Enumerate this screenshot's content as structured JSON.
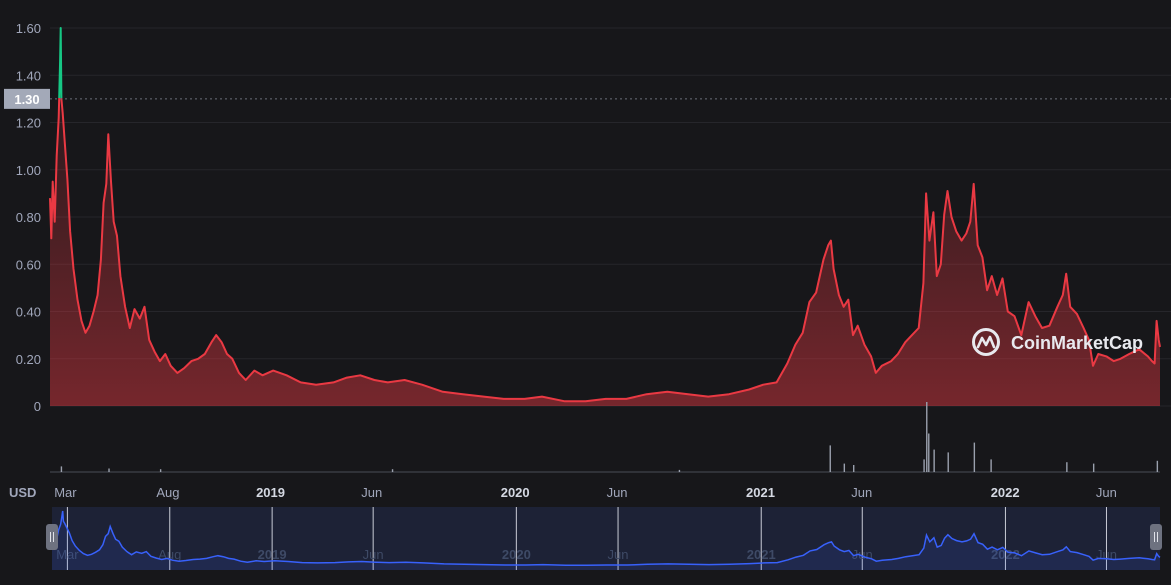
{
  "brand": {
    "name": "CoinMarketCap",
    "icon": "coinmarketcap-logo-icon"
  },
  "price_marker": {
    "label": "1.30",
    "value": 1.3,
    "color": "#a3a9b8"
  },
  "currency_label": "USD",
  "colors": {
    "background": "#17171a",
    "price_down": "#ea3943",
    "price_up": "#16c784",
    "navigator_line": "#3861fb",
    "navigator_bg": "#1d2236",
    "volume": "#9aa0ad",
    "grid": "#26262b"
  },
  "chart_data": {
    "type": "area",
    "y_axis": {
      "ticks": [
        "0",
        "0.20",
        "0.40",
        "0.60",
        "0.80",
        "1.00",
        "1.20",
        "1.40",
        "1.60"
      ],
      "range": [
        0,
        1.6
      ]
    },
    "x_axis": {
      "range": [
        "2018-02-06",
        "2022-08-20"
      ],
      "ticks": [
        {
          "date": "2018-03-01",
          "label": "Mar",
          "bold": false
        },
        {
          "date": "2018-08-01",
          "label": "Aug",
          "bold": false
        },
        {
          "date": "2019-01-01",
          "label": "2019",
          "bold": true
        },
        {
          "date": "2019-06-01",
          "label": "Jun",
          "bold": false
        },
        {
          "date": "2020-01-01",
          "label": "2020",
          "bold": true
        },
        {
          "date": "2020-06-01",
          "label": "Jun",
          "bold": false
        },
        {
          "date": "2021-01-01",
          "label": "2021",
          "bold": true
        },
        {
          "date": "2021-06-01",
          "label": "Jun",
          "bold": false
        },
        {
          "date": "2022-01-01",
          "label": "2022",
          "bold": true
        },
        {
          "date": "2022-06-01",
          "label": "Jun",
          "bold": false
        }
      ]
    },
    "series": [
      {
        "values": [
          [
            "2018-02-06",
            0.88
          ],
          [
            "2018-02-08",
            0.71
          ],
          [
            "2018-02-10",
            0.95
          ],
          [
            "2018-02-13",
            0.78
          ],
          [
            "2018-02-16",
            1.06
          ],
          [
            "2018-02-19",
            1.22
          ],
          [
            "2018-02-21",
            1.46
          ],
          [
            "2018-02-22",
            1.6
          ],
          [
            "2018-02-23",
            1.3
          ],
          [
            "2018-02-25",
            1.24
          ],
          [
            "2018-02-28",
            1.12
          ],
          [
            "2018-03-04",
            0.96
          ],
          [
            "2018-03-08",
            0.74
          ],
          [
            "2018-03-13",
            0.58
          ],
          [
            "2018-03-19",
            0.45
          ],
          [
            "2018-03-25",
            0.36
          ],
          [
            "2018-03-31",
            0.31
          ],
          [
            "2018-04-06",
            0.34
          ],
          [
            "2018-04-12",
            0.4
          ],
          [
            "2018-04-18",
            0.47
          ],
          [
            "2018-04-23",
            0.62
          ],
          [
            "2018-04-27",
            0.86
          ],
          [
            "2018-05-01",
            0.94
          ],
          [
            "2018-05-04",
            1.15
          ],
          [
            "2018-05-08",
            0.95
          ],
          [
            "2018-05-12",
            0.78
          ],
          [
            "2018-05-17",
            0.72
          ],
          [
            "2018-05-22",
            0.55
          ],
          [
            "2018-05-29",
            0.42
          ],
          [
            "2018-06-05",
            0.33
          ],
          [
            "2018-06-12",
            0.41
          ],
          [
            "2018-06-20",
            0.37
          ],
          [
            "2018-06-27",
            0.42
          ],
          [
            "2018-07-04",
            0.28
          ],
          [
            "2018-07-12",
            0.23
          ],
          [
            "2018-07-20",
            0.19
          ],
          [
            "2018-07-28",
            0.22
          ],
          [
            "2018-08-05",
            0.17
          ],
          [
            "2018-08-15",
            0.14
          ],
          [
            "2018-08-25",
            0.16
          ],
          [
            "2018-09-05",
            0.19
          ],
          [
            "2018-09-15",
            0.2
          ],
          [
            "2018-09-25",
            0.22
          ],
          [
            "2018-10-05",
            0.27
          ],
          [
            "2018-10-12",
            0.3
          ],
          [
            "2018-10-20",
            0.27
          ],
          [
            "2018-10-28",
            0.22
          ],
          [
            "2018-11-05",
            0.2
          ],
          [
            "2018-11-15",
            0.14
          ],
          [
            "2018-11-25",
            0.11
          ],
          [
            "2018-12-08",
            0.15
          ],
          [
            "2018-12-20",
            0.13
          ],
          [
            "2019-01-05",
            0.15
          ],
          [
            "2019-01-25",
            0.13
          ],
          [
            "2019-02-15",
            0.1
          ],
          [
            "2019-03-10",
            0.09
          ],
          [
            "2019-04-05",
            0.1
          ],
          [
            "2019-04-25",
            0.12
          ],
          [
            "2019-05-15",
            0.13
          ],
          [
            "2019-06-05",
            0.11
          ],
          [
            "2019-06-25",
            0.1
          ],
          [
            "2019-07-20",
            0.11
          ],
          [
            "2019-08-15",
            0.09
          ],
          [
            "2019-09-15",
            0.06
          ],
          [
            "2019-10-15",
            0.05
          ],
          [
            "2019-11-15",
            0.04
          ],
          [
            "2019-12-15",
            0.03
          ],
          [
            "2020-01-15",
            0.03
          ],
          [
            "2020-02-10",
            0.04
          ],
          [
            "2020-03-15",
            0.02
          ],
          [
            "2020-04-15",
            0.02
          ],
          [
            "2020-05-15",
            0.03
          ],
          [
            "2020-06-15",
            0.03
          ],
          [
            "2020-07-15",
            0.05
          ],
          [
            "2020-08-15",
            0.06
          ],
          [
            "2020-09-15",
            0.05
          ],
          [
            "2020-10-15",
            0.04
          ],
          [
            "2020-11-15",
            0.05
          ],
          [
            "2020-12-15",
            0.07
          ],
          [
            "2021-01-05",
            0.09
          ],
          [
            "2021-01-25",
            0.1
          ],
          [
            "2021-02-10",
            0.18
          ],
          [
            "2021-02-22",
            0.26
          ],
          [
            "2021-03-05",
            0.31
          ],
          [
            "2021-03-15",
            0.44
          ],
          [
            "2021-03-25",
            0.48
          ],
          [
            "2021-04-05",
            0.62
          ],
          [
            "2021-04-12",
            0.68
          ],
          [
            "2021-04-16",
            0.7
          ],
          [
            "2021-04-20",
            0.58
          ],
          [
            "2021-04-28",
            0.47
          ],
          [
            "2021-05-05",
            0.42
          ],
          [
            "2021-05-12",
            0.45
          ],
          [
            "2021-05-19",
            0.3
          ],
          [
            "2021-05-26",
            0.34
          ],
          [
            "2021-06-05",
            0.26
          ],
          [
            "2021-06-15",
            0.21
          ],
          [
            "2021-06-22",
            0.14
          ],
          [
            "2021-07-01",
            0.17
          ],
          [
            "2021-07-15",
            0.19
          ],
          [
            "2021-07-25",
            0.22
          ],
          [
            "2021-08-05",
            0.27
          ],
          [
            "2021-08-15",
            0.3
          ],
          [
            "2021-08-25",
            0.33
          ],
          [
            "2021-09-01",
            0.52
          ],
          [
            "2021-09-05",
            0.9
          ],
          [
            "2021-09-10",
            0.7
          ],
          [
            "2021-09-16",
            0.82
          ],
          [
            "2021-09-21",
            0.55
          ],
          [
            "2021-09-27",
            0.6
          ],
          [
            "2021-10-02",
            0.81
          ],
          [
            "2021-10-07",
            0.91
          ],
          [
            "2021-10-13",
            0.8
          ],
          [
            "2021-10-20",
            0.74
          ],
          [
            "2021-10-28",
            0.7
          ],
          [
            "2021-11-04",
            0.73
          ],
          [
            "2021-11-10",
            0.78
          ],
          [
            "2021-11-15",
            0.94
          ],
          [
            "2021-11-21",
            0.68
          ],
          [
            "2021-11-28",
            0.63
          ],
          [
            "2021-12-05",
            0.49
          ],
          [
            "2021-12-12",
            0.55
          ],
          [
            "2021-12-20",
            0.47
          ],
          [
            "2021-12-28",
            0.54
          ],
          [
            "2022-01-05",
            0.4
          ],
          [
            "2022-01-15",
            0.38
          ],
          [
            "2022-01-25",
            0.3
          ],
          [
            "2022-02-05",
            0.44
          ],
          [
            "2022-02-15",
            0.38
          ],
          [
            "2022-02-25",
            0.33
          ],
          [
            "2022-03-08",
            0.34
          ],
          [
            "2022-03-20",
            0.42
          ],
          [
            "2022-03-28",
            0.47
          ],
          [
            "2022-04-02",
            0.56
          ],
          [
            "2022-04-08",
            0.42
          ],
          [
            "2022-04-18",
            0.39
          ],
          [
            "2022-04-28",
            0.33
          ],
          [
            "2022-05-06",
            0.28
          ],
          [
            "2022-05-12",
            0.17
          ],
          [
            "2022-05-20",
            0.22
          ],
          [
            "2022-06-01",
            0.21
          ],
          [
            "2022-06-12",
            0.19
          ],
          [
            "2022-06-22",
            0.2
          ],
          [
            "2022-07-05",
            0.22
          ],
          [
            "2022-07-20",
            0.24
          ],
          [
            "2022-08-02",
            0.21
          ],
          [
            "2022-08-08",
            0.19
          ],
          [
            "2022-08-12",
            0.18
          ],
          [
            "2022-08-15",
            0.36
          ],
          [
            "2022-08-18",
            0.28
          ],
          [
            "2022-08-20",
            0.25
          ]
        ]
      }
    ],
    "volume": [
      [
        "2018-02-22",
        0.08
      ],
      [
        "2018-05-04",
        0.05
      ],
      [
        "2018-07-20",
        0.04
      ],
      [
        "2019-07-01",
        0.04
      ],
      [
        "2020-09-01",
        0.03
      ],
      [
        "2021-04-14",
        0.38
      ],
      [
        "2021-05-05",
        0.12
      ],
      [
        "2021-05-19",
        0.1
      ],
      [
        "2021-09-01",
        0.18
      ],
      [
        "2021-09-05",
        1.0
      ],
      [
        "2021-09-08",
        0.55
      ],
      [
        "2021-09-16",
        0.32
      ],
      [
        "2021-10-07",
        0.28
      ],
      [
        "2021-11-15",
        0.42
      ],
      [
        "2021-12-10",
        0.18
      ],
      [
        "2022-04-02",
        0.14
      ],
      [
        "2022-05-12",
        0.12
      ],
      [
        "2022-08-15",
        0.16
      ]
    ],
    "grid": true,
    "legend": "none",
    "navigator": true
  }
}
